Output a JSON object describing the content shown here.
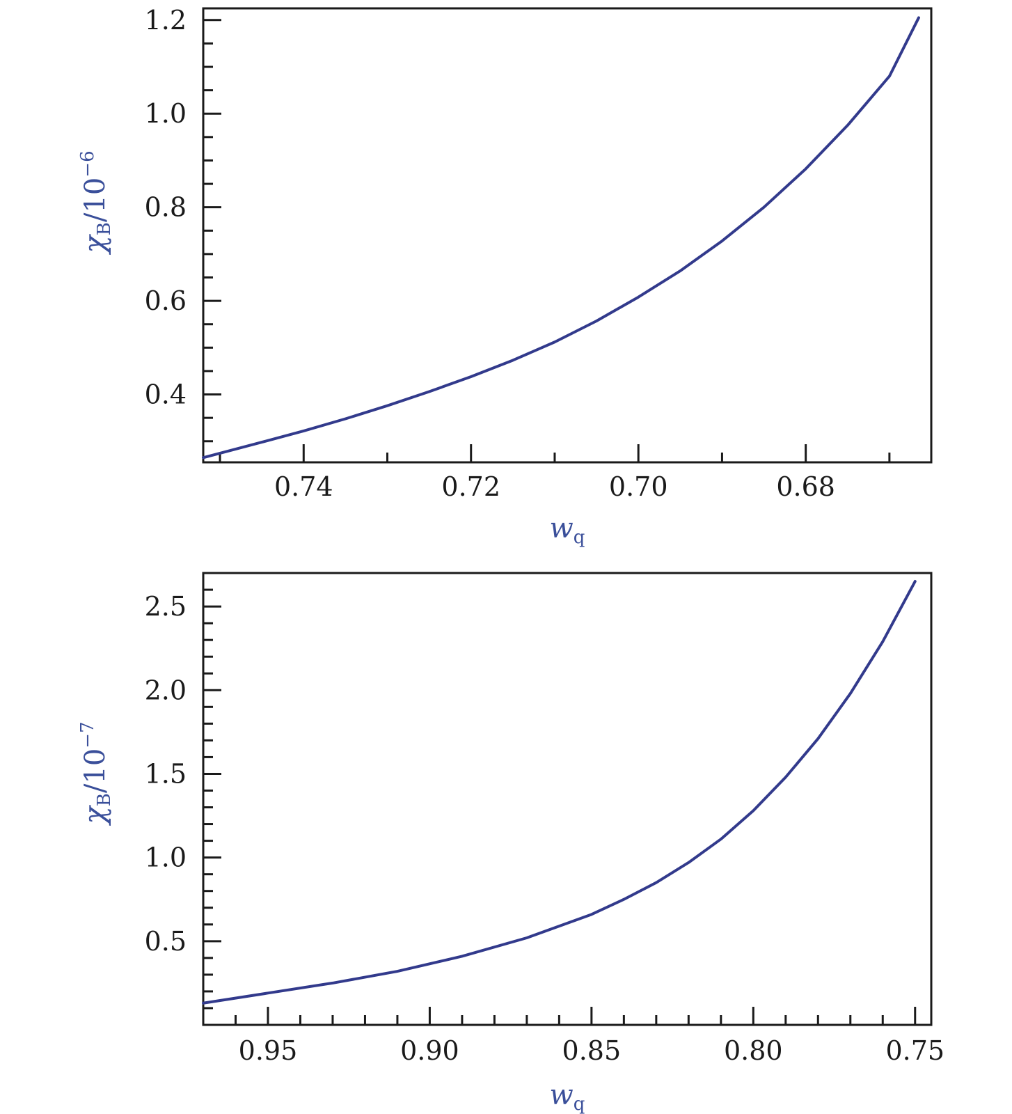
{
  "chart_data": [
    {
      "type": "line",
      "xlabel": "w",
      "xlabel_sub": "q",
      "ylabel": "χ",
      "ylabel_sub": "B",
      "ylabel_suffix": "/10",
      "ylabel_exp": "−6",
      "x_reversed": true,
      "xlim": [
        0.752,
        0.665
      ],
      "ylim": [
        0.255,
        1.225
      ],
      "x_ticks_major": [
        0.74,
        0.72,
        0.7,
        0.68
      ],
      "x_tick_labels": [
        "0.74",
        "0.72",
        "0.70",
        "0.68"
      ],
      "x_ticks_minor": [
        0.75,
        0.73,
        0.71,
        0.69,
        0.67
      ],
      "y_ticks_major": [
        0.4,
        0.6,
        0.8,
        1.0,
        1.2
      ],
      "y_tick_labels": [
        "0.4",
        "0.6",
        "0.8",
        "1.0",
        "1.2"
      ],
      "y_ticks_minor": [
        0.3,
        0.35,
        0.45,
        0.5,
        0.55,
        0.65,
        0.7,
        0.75,
        0.85,
        0.9,
        0.95,
        1.05,
        1.1,
        1.15
      ],
      "series": [
        {
          "color": "#323a8c",
          "x": [
            0.752,
            0.745,
            0.74,
            0.735,
            0.73,
            0.725,
            0.72,
            0.715,
            0.71,
            0.705,
            0.7,
            0.695,
            0.69,
            0.685,
            0.68,
            0.675,
            0.67,
            0.6665
          ],
          "y": [
            0.265,
            0.298,
            0.322,
            0.348,
            0.376,
            0.406,
            0.438,
            0.473,
            0.512,
            0.557,
            0.608,
            0.664,
            0.728,
            0.8,
            0.882,
            0.975,
            1.08,
            1.205
          ]
        }
      ]
    },
    {
      "type": "line",
      "xlabel": "w",
      "xlabel_sub": "q",
      "ylabel": "χ",
      "ylabel_sub": "B",
      "ylabel_suffix": "/10",
      "ylabel_exp": "−7",
      "x_reversed": true,
      "xlim": [
        0.97,
        0.745
      ],
      "ylim": [
        0.0,
        2.7
      ],
      "x_ticks_major": [
        0.95,
        0.9,
        0.85,
        0.8,
        0.75
      ],
      "x_tick_labels": [
        "0.95",
        "0.90",
        "0.85",
        "0.80",
        "0.75"
      ],
      "x_ticks_minor": [
        0.96,
        0.94,
        0.93,
        0.92,
        0.91,
        0.89,
        0.88,
        0.87,
        0.86,
        0.84,
        0.83,
        0.82,
        0.81,
        0.79,
        0.78,
        0.77,
        0.76
      ],
      "y_ticks_major": [
        0.5,
        1.0,
        1.5,
        2.0,
        2.5
      ],
      "y_tick_labels": [
        "0.5",
        "1.0",
        "1.5",
        "2.0",
        "2.5"
      ],
      "y_ticks_minor": [
        0.1,
        0.2,
        0.3,
        0.4,
        0.6,
        0.7,
        0.8,
        0.9,
        1.1,
        1.2,
        1.3,
        1.4,
        1.6,
        1.7,
        1.8,
        1.9,
        2.1,
        2.2,
        2.3,
        2.4,
        2.6
      ],
      "series": [
        {
          "color": "#323a8c",
          "x": [
            0.97,
            0.95,
            0.93,
            0.91,
            0.89,
            0.87,
            0.85,
            0.84,
            0.83,
            0.82,
            0.81,
            0.8,
            0.79,
            0.78,
            0.77,
            0.76,
            0.75
          ],
          "y": [
            0.13,
            0.19,
            0.25,
            0.32,
            0.41,
            0.52,
            0.66,
            0.75,
            0.85,
            0.97,
            1.11,
            1.28,
            1.48,
            1.71,
            1.98,
            2.29,
            2.65
          ]
        }
      ]
    }
  ]
}
